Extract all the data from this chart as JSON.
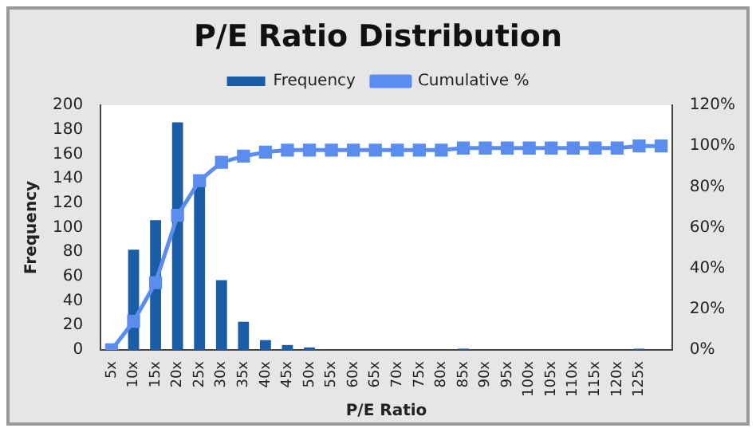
{
  "chart_data": {
    "type": "bar",
    "title": "P/E Ratio Distribution",
    "xlabel": "P/E Ratio",
    "ylabel": "Frequency",
    "categories": [
      "5x",
      "10x",
      "15x",
      "20x",
      "25x",
      "30x",
      "35x",
      "40x",
      "45x",
      "50x",
      "55x",
      "60x",
      "65x",
      "70x",
      "75x",
      "80x",
      "85x",
      "90x",
      "95x",
      "100x",
      "105x",
      "110x",
      "115x",
      "120x",
      "125x",
      null
    ],
    "series": [
      {
        "name": "Frequency",
        "color": "#1a5da6",
        "values": [
          0,
          82,
          106,
          186,
          136,
          57,
          23,
          8,
          4,
          2,
          0,
          0,
          0,
          0,
          0,
          0,
          1,
          0,
          0,
          0,
          0,
          0,
          0,
          0,
          1,
          0
        ]
      },
      {
        "name": "Cumulative %",
        "type": "line",
        "axis": "y2",
        "color": "#5b8def",
        "values": [
          0,
          14,
          33,
          66,
          83,
          92,
          95,
          97,
          98,
          98,
          98,
          98,
          98,
          98,
          98,
          98,
          99,
          99,
          99,
          99,
          99,
          99,
          99,
          99,
          100,
          100
        ]
      }
    ],
    "ylim": [
      0,
      200
    ],
    "yticks": [
      0,
      20,
      40,
      60,
      80,
      100,
      120,
      140,
      160,
      180,
      200
    ],
    "y2lim": [
      0,
      120
    ],
    "y2ticks": [
      {
        "value": 0,
        "label": "0%"
      },
      {
        "value": 20,
        "label": "20%"
      },
      {
        "value": 40,
        "label": "40%"
      },
      {
        "value": 60,
        "label": "60%"
      },
      {
        "value": 80,
        "label": "80%"
      },
      {
        "value": 100,
        "label": "100%"
      },
      {
        "value": 120,
        "label": "120%"
      }
    ],
    "grid": false,
    "legend": "top",
    "marker": "square"
  }
}
